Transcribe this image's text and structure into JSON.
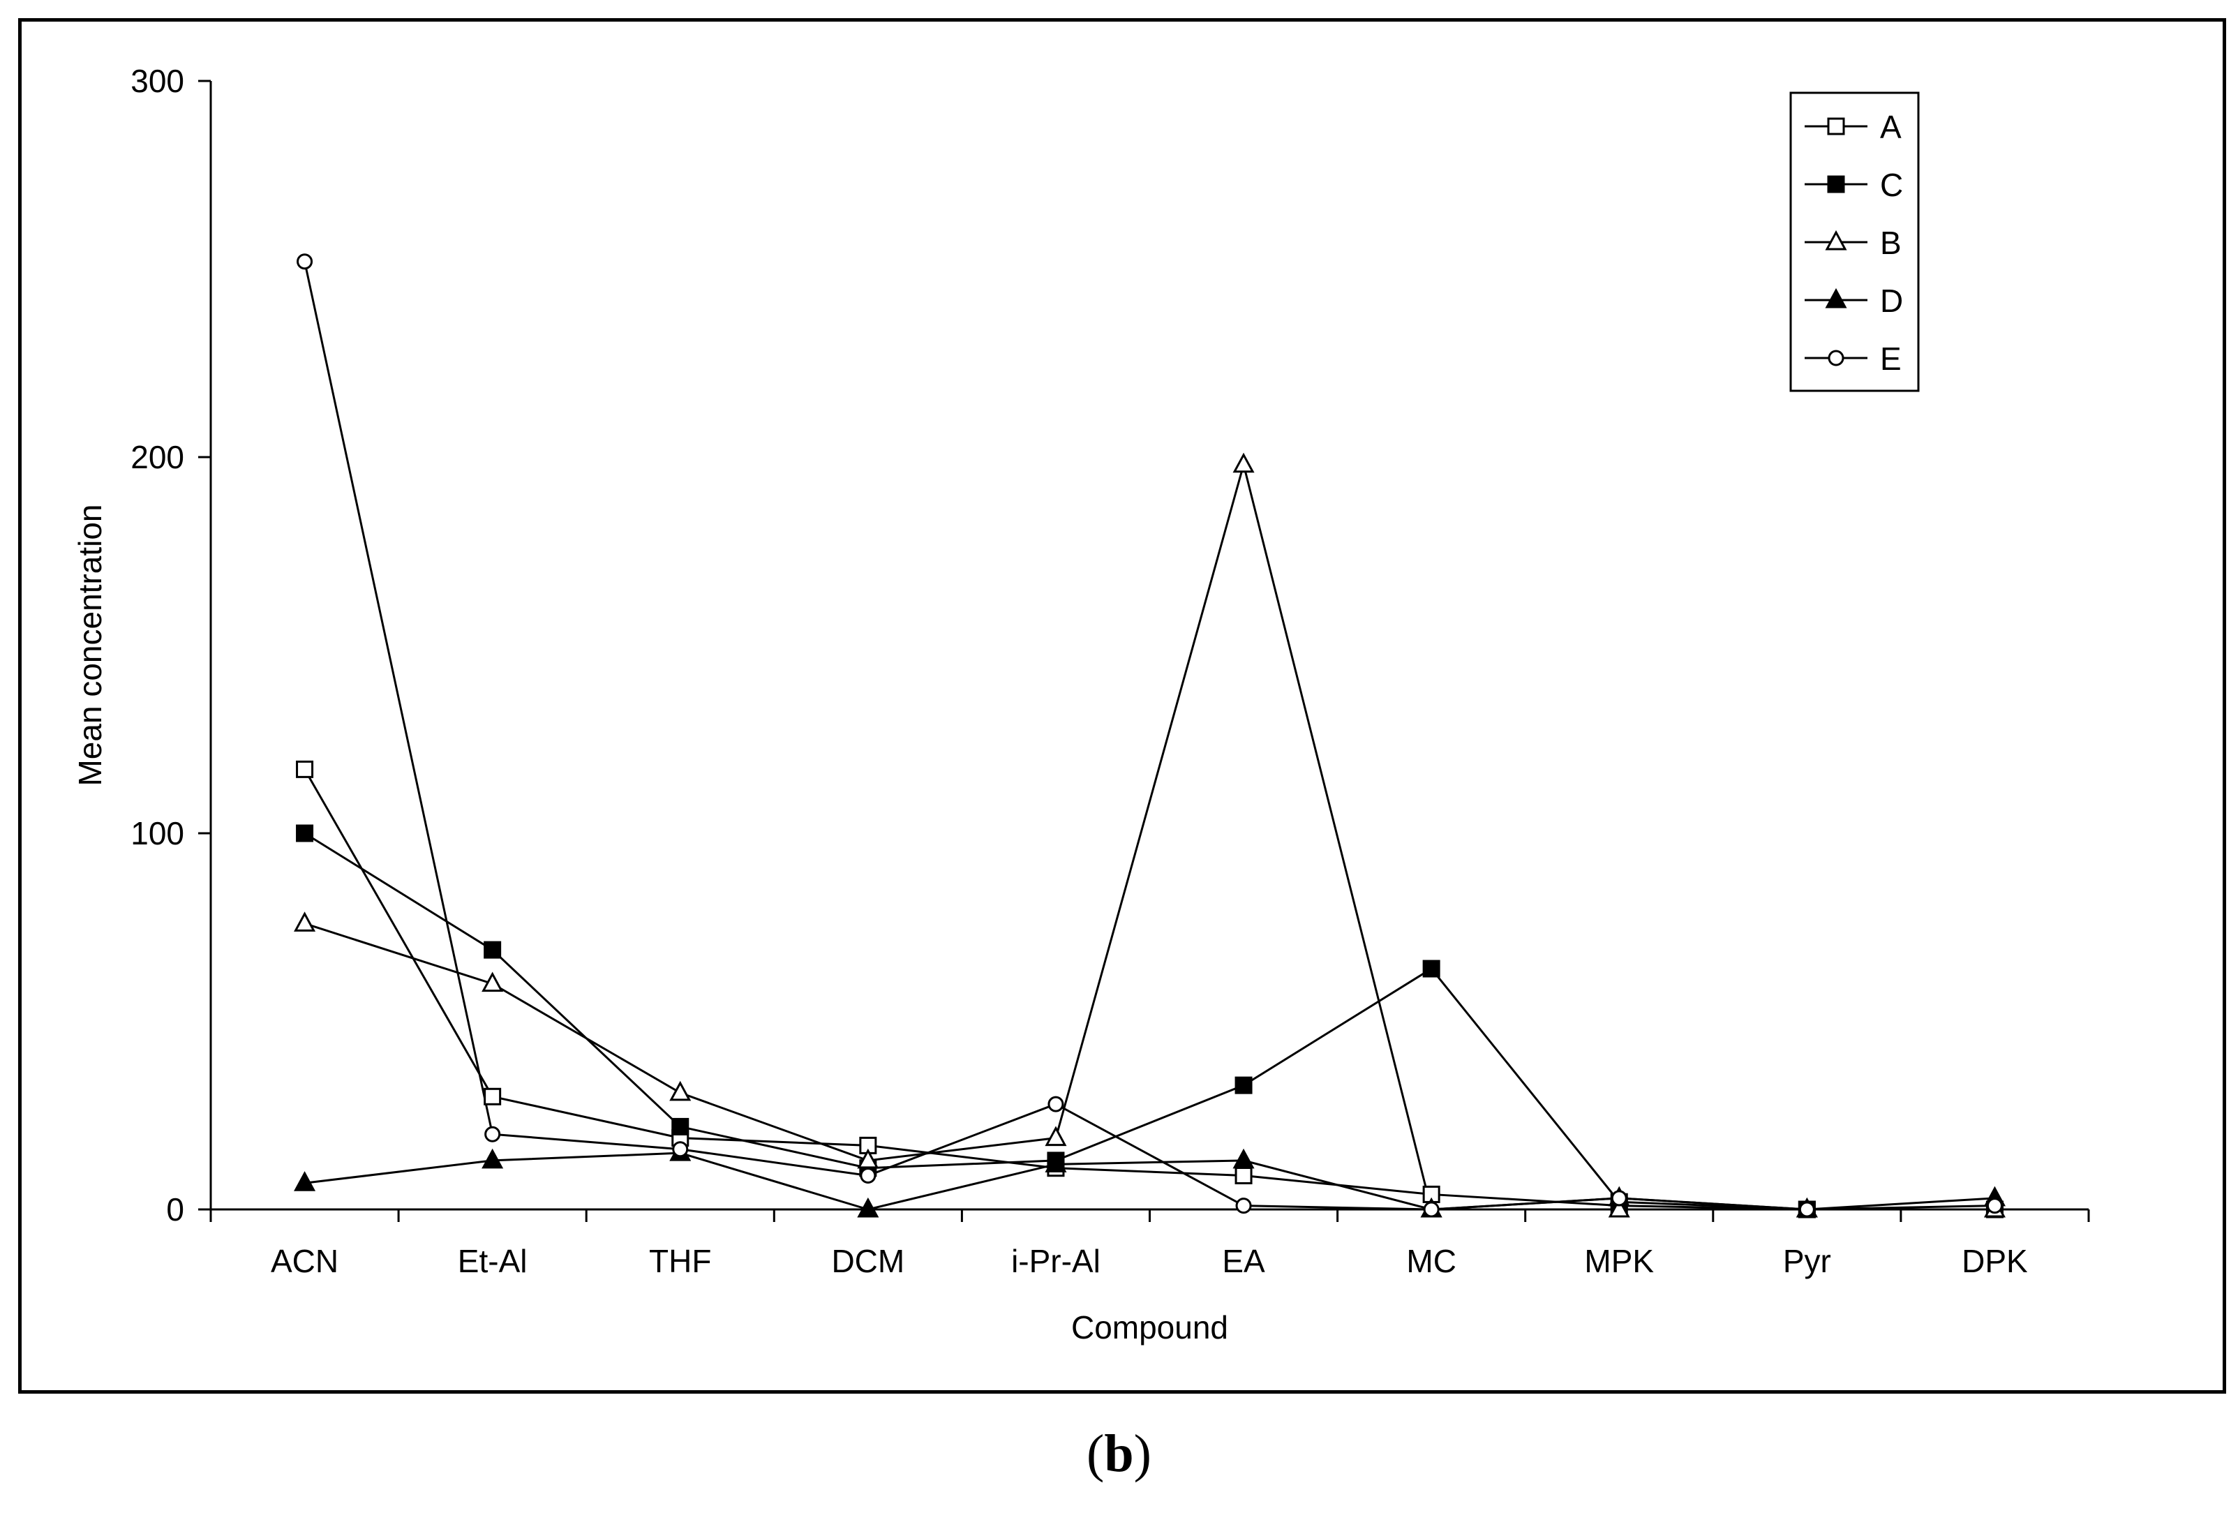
{
  "panel_label": {
    "open": "(",
    "letter": "b",
    "close": ")"
  },
  "chart_data": {
    "type": "line",
    "xlabel": "Compound",
    "ylabel": "Mean concentration",
    "categories": [
      "ACN",
      "Et-Al",
      "THF",
      "DCM",
      "i-Pr-Al",
      "EA",
      "MC",
      "MPK",
      "Pyr",
      "DPK"
    ],
    "ylim": [
      0,
      300
    ],
    "yticks": [
      0,
      100,
      200,
      300
    ],
    "grid": false,
    "legend_position": "top-right",
    "series": [
      {
        "name": "A",
        "marker": "square",
        "filled": false,
        "values": [
          117,
          30,
          19,
          17,
          11,
          9,
          4,
          1,
          0,
          0
        ]
      },
      {
        "name": "C",
        "marker": "square",
        "filled": true,
        "values": [
          100,
          69,
          22,
          11,
          13,
          33,
          64,
          2,
          0,
          0
        ]
      },
      {
        "name": "B",
        "marker": "triangle",
        "filled": false,
        "values": [
          76,
          60,
          31,
          13,
          19,
          198,
          0,
          0,
          0,
          0
        ]
      },
      {
        "name": "D",
        "marker": "triangle",
        "filled": true,
        "values": [
          7,
          13,
          15,
          0,
          12,
          13,
          0,
          3,
          0,
          3
        ]
      },
      {
        "name": "E",
        "marker": "circle",
        "filled": false,
        "values": [
          252,
          20,
          16,
          9,
          28,
          1,
          0,
          3,
          0,
          1
        ]
      }
    ]
  }
}
